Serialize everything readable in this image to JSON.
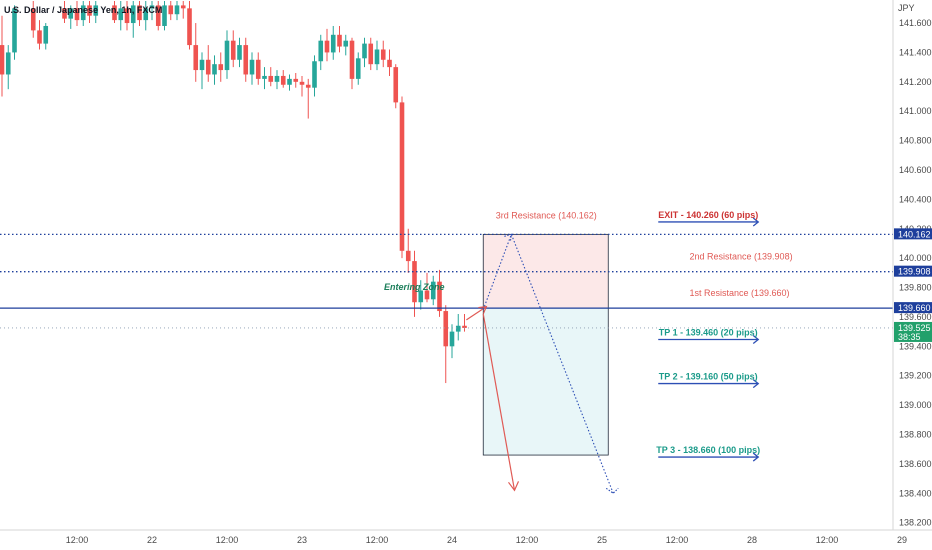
{
  "chart_data": {
    "type": "candlestick",
    "title": "U.S. Dollar / Japanese Yen, 1h, FXCM",
    "currency_label": "JPY",
    "ylim": [
      138.15,
      141.75
    ],
    "y_ticks": [
      "141.600",
      "141.400",
      "141.200",
      "141.000",
      "140.800",
      "140.600",
      "140.400",
      "140.200",
      "140.000",
      "139.800",
      "139.600",
      "139.400",
      "139.200",
      "139.000",
      "138.800",
      "138.600",
      "138.400",
      "138.200"
    ],
    "x_ticks": [
      {
        "label": "12:00",
        "t": 12
      },
      {
        "label": "22",
        "t": 24
      },
      {
        "label": "12:00",
        "t": 36
      },
      {
        "label": "23",
        "t": 48
      },
      {
        "label": "12:00",
        "t": 60
      },
      {
        "label": "24",
        "t": 72
      },
      {
        "label": "12:00",
        "t": 84
      },
      {
        "label": "25",
        "t": 96
      },
      {
        "label": "12:00",
        "t": 108
      },
      {
        "label": "28",
        "t": 120
      },
      {
        "label": "12:00",
        "t": 132
      },
      {
        "label": "29",
        "t": 144
      }
    ],
    "candles": [
      {
        "t": 0,
        "o": 141.45,
        "h": 141.65,
        "l": 141.1,
        "c": 141.25
      },
      {
        "t": 1,
        "o": 141.25,
        "h": 141.45,
        "l": 141.15,
        "c": 141.4
      },
      {
        "t": 2,
        "o": 141.4,
        "h": 141.72,
        "l": 141.35,
        "c": 141.7
      },
      {
        "t": 5,
        "o": 141.7,
        "h": 141.75,
        "l": 141.5,
        "c": 141.55
      },
      {
        "t": 6,
        "o": 141.55,
        "h": 141.62,
        "l": 141.42,
        "c": 141.46
      },
      {
        "t": 7,
        "o": 141.46,
        "h": 141.6,
        "l": 141.42,
        "c": 141.58
      },
      {
        "t": 10,
        "o": 141.7,
        "h": 141.75,
        "l": 141.6,
        "c": 141.63
      },
      {
        "t": 11,
        "o": 141.63,
        "h": 141.72,
        "l": 141.56,
        "c": 141.7
      },
      {
        "t": 12,
        "o": 141.7,
        "h": 141.75,
        "l": 141.58,
        "c": 141.62
      },
      {
        "t": 13,
        "o": 141.62,
        "h": 141.75,
        "l": 141.58,
        "c": 141.72
      },
      {
        "t": 14,
        "o": 141.72,
        "h": 141.75,
        "l": 141.6,
        "c": 141.65
      },
      {
        "t": 15,
        "o": 141.65,
        "h": 141.75,
        "l": 141.6,
        "c": 141.72
      },
      {
        "t": 18,
        "o": 141.72,
        "h": 141.75,
        "l": 141.6,
        "c": 141.62
      },
      {
        "t": 19,
        "o": 141.62,
        "h": 141.75,
        "l": 141.55,
        "c": 141.7
      },
      {
        "t": 20,
        "o": 141.7,
        "h": 141.75,
        "l": 141.55,
        "c": 141.6
      },
      {
        "t": 21,
        "o": 141.6,
        "h": 141.75,
        "l": 141.5,
        "c": 141.72
      },
      {
        "t": 22,
        "o": 141.72,
        "h": 141.75,
        "l": 141.58,
        "c": 141.62
      },
      {
        "t": 23,
        "o": 141.62,
        "h": 141.75,
        "l": 141.55,
        "c": 141.7
      },
      {
        "t": 24,
        "o": 141.7,
        "h": 141.75,
        "l": 141.62,
        "c": 141.72
      },
      {
        "t": 25,
        "o": 141.72,
        "h": 141.75,
        "l": 141.55,
        "c": 141.58
      },
      {
        "t": 26,
        "o": 141.58,
        "h": 141.75,
        "l": 141.55,
        "c": 141.72
      },
      {
        "t": 27,
        "o": 141.72,
        "h": 141.75,
        "l": 141.62,
        "c": 141.66
      },
      {
        "t": 28,
        "o": 141.66,
        "h": 141.75,
        "l": 141.62,
        "c": 141.72
      },
      {
        "t": 29,
        "o": 141.72,
        "h": 141.75,
        "l": 141.63,
        "c": 141.7
      },
      {
        "t": 30,
        "o": 141.7,
        "h": 141.75,
        "l": 141.42,
        "c": 141.45
      },
      {
        "t": 31,
        "o": 141.45,
        "h": 141.6,
        "l": 141.2,
        "c": 141.28
      },
      {
        "t": 32,
        "o": 141.28,
        "h": 141.4,
        "l": 141.15,
        "c": 141.35
      },
      {
        "t": 33,
        "o": 141.35,
        "h": 141.45,
        "l": 141.2,
        "c": 141.25
      },
      {
        "t": 34,
        "o": 141.25,
        "h": 141.38,
        "l": 141.18,
        "c": 141.32
      },
      {
        "t": 35,
        "o": 141.32,
        "h": 141.4,
        "l": 141.2,
        "c": 141.28
      },
      {
        "t": 36,
        "o": 141.28,
        "h": 141.55,
        "l": 141.22,
        "c": 141.48
      },
      {
        "t": 37,
        "o": 141.48,
        "h": 141.55,
        "l": 141.3,
        "c": 141.35
      },
      {
        "t": 38,
        "o": 141.35,
        "h": 141.5,
        "l": 141.3,
        "c": 141.45
      },
      {
        "t": 39,
        "o": 141.45,
        "h": 141.5,
        "l": 141.2,
        "c": 141.25
      },
      {
        "t": 40,
        "o": 141.25,
        "h": 141.4,
        "l": 141.18,
        "c": 141.35
      },
      {
        "t": 41,
        "o": 141.35,
        "h": 141.4,
        "l": 141.18,
        "c": 141.22
      },
      {
        "t": 42,
        "o": 141.22,
        "h": 141.3,
        "l": 141.15,
        "c": 141.24
      },
      {
        "t": 43,
        "o": 141.24,
        "h": 141.3,
        "l": 141.17,
        "c": 141.2
      },
      {
        "t": 44,
        "o": 141.2,
        "h": 141.28,
        "l": 141.15,
        "c": 141.24
      },
      {
        "t": 45,
        "o": 141.24,
        "h": 141.28,
        "l": 141.16,
        "c": 141.18
      },
      {
        "t": 46,
        "o": 141.18,
        "h": 141.25,
        "l": 141.14,
        "c": 141.22
      },
      {
        "t": 47,
        "o": 141.22,
        "h": 141.26,
        "l": 141.16,
        "c": 141.2
      },
      {
        "t": 48,
        "o": 141.2,
        "h": 141.24,
        "l": 141.1,
        "c": 141.18
      },
      {
        "t": 49,
        "o": 141.18,
        "h": 141.22,
        "l": 140.95,
        "c": 141.16
      },
      {
        "t": 50,
        "o": 141.16,
        "h": 141.38,
        "l": 141.1,
        "c": 141.34
      },
      {
        "t": 51,
        "o": 141.34,
        "h": 141.52,
        "l": 141.28,
        "c": 141.48
      },
      {
        "t": 52,
        "o": 141.48,
        "h": 141.56,
        "l": 141.34,
        "c": 141.4
      },
      {
        "t": 53,
        "o": 141.4,
        "h": 141.58,
        "l": 141.35,
        "c": 141.52
      },
      {
        "t": 54,
        "o": 141.52,
        "h": 141.58,
        "l": 141.4,
        "c": 141.44
      },
      {
        "t": 55,
        "o": 141.44,
        "h": 141.52,
        "l": 141.38,
        "c": 141.48
      },
      {
        "t": 56,
        "o": 141.48,
        "h": 141.5,
        "l": 141.15,
        "c": 141.22
      },
      {
        "t": 57,
        "o": 141.22,
        "h": 141.4,
        "l": 141.18,
        "c": 141.36
      },
      {
        "t": 58,
        "o": 141.36,
        "h": 141.5,
        "l": 141.3,
        "c": 141.46
      },
      {
        "t": 59,
        "o": 141.46,
        "h": 141.5,
        "l": 141.28,
        "c": 141.32
      },
      {
        "t": 60,
        "o": 141.32,
        "h": 141.48,
        "l": 141.28,
        "c": 141.42
      },
      {
        "t": 61,
        "o": 141.42,
        "h": 141.48,
        "l": 141.3,
        "c": 141.35
      },
      {
        "t": 62,
        "o": 141.35,
        "h": 141.42,
        "l": 141.24,
        "c": 141.3
      },
      {
        "t": 63,
        "o": 141.3,
        "h": 141.32,
        "l": 141.02,
        "c": 141.06
      },
      {
        "t": 64,
        "o": 141.06,
        "h": 141.1,
        "l": 140.0,
        "c": 140.05
      },
      {
        "t": 65,
        "o": 140.05,
        "h": 140.2,
        "l": 139.9,
        "c": 139.98
      },
      {
        "t": 66,
        "o": 139.98,
        "h": 140.05,
        "l": 139.6,
        "c": 139.7
      },
      {
        "t": 67,
        "o": 139.7,
        "h": 139.85,
        "l": 139.65,
        "c": 139.78
      },
      {
        "t": 68,
        "o": 139.78,
        "h": 139.9,
        "l": 139.7,
        "c": 139.72
      },
      {
        "t": 69,
        "o": 139.72,
        "h": 139.88,
        "l": 139.68,
        "c": 139.84
      },
      {
        "t": 70,
        "o": 139.84,
        "h": 139.92,
        "l": 139.6,
        "c": 139.64
      },
      {
        "t": 71,
        "o": 139.64,
        "h": 139.68,
        "l": 139.15,
        "c": 139.4
      },
      {
        "t": 72,
        "o": 139.4,
        "h": 139.55,
        "l": 139.32,
        "c": 139.5
      },
      {
        "t": 73,
        "o": 139.5,
        "h": 139.62,
        "l": 139.44,
        "c": 139.54
      },
      {
        "t": 74,
        "o": 139.54,
        "h": 139.62,
        "l": 139.5,
        "c": 139.525
      }
    ],
    "price_labels": [
      {
        "label": "140.162",
        "value": 140.162,
        "color": "#1e3f9c"
      },
      {
        "label": "139.908",
        "value": 139.908,
        "color": "#1e3f9c"
      },
      {
        "label": "139.660",
        "value": 139.66,
        "color": "#1e3f9c"
      },
      {
        "label": "139.525",
        "value": 139.525,
        "color": "#22a06b",
        "sub": "38:35"
      }
    ],
    "zones": [
      {
        "name": "resistance-zone",
        "t_from": 77,
        "t_to": 97,
        "y_top": 140.162,
        "y_bottom": 139.66,
        "color": "#fce8e8"
      },
      {
        "name": "target-zone",
        "t_from": 77,
        "t_to": 97,
        "y_top": 139.66,
        "y_bottom": 138.66,
        "color": "#e8f6f8"
      }
    ],
    "levels": [
      {
        "label": "3rd Resistance (140.162)",
        "value": 140.162,
        "text_t": 79,
        "color": "#e05a55"
      },
      {
        "label": "2nd Resistance (139.908)",
        "value": 139.908,
        "text_t": 110,
        "color": "#e05a55"
      },
      {
        "label": "1st Resistance (139.660)",
        "value": 139.66,
        "text_t": 110,
        "color": "#e05a55"
      }
    ],
    "targets": [
      {
        "label": "EXIT - 140.260 (60 pips)",
        "value": 140.26,
        "t_from": 105,
        "t_to": 121,
        "color": "#d73c3c"
      },
      {
        "label": "TP 1 - 139.460 (20 pips)",
        "value": 139.46,
        "t_from": 105,
        "t_to": 121,
        "color": "#1b9b8a"
      },
      {
        "label": "TP 2 - 139.160 (50 pips)",
        "value": 139.16,
        "t_from": 105,
        "t_to": 121,
        "color": "#1b9b8a"
      },
      {
        "label": "TP 3 - 138.660 (100 pips)",
        "value": 138.66,
        "t_from": 105,
        "t_to": 121,
        "color": "#1b9b8a"
      }
    ],
    "entering_zone_label": "Entering Zone",
    "colors": {
      "up": "#26a69a",
      "down": "#ef5350",
      "hline": "#1e3f9c",
      "arrow_red": "#e05a55",
      "arrow_blue": "#2d4fb5"
    }
  }
}
